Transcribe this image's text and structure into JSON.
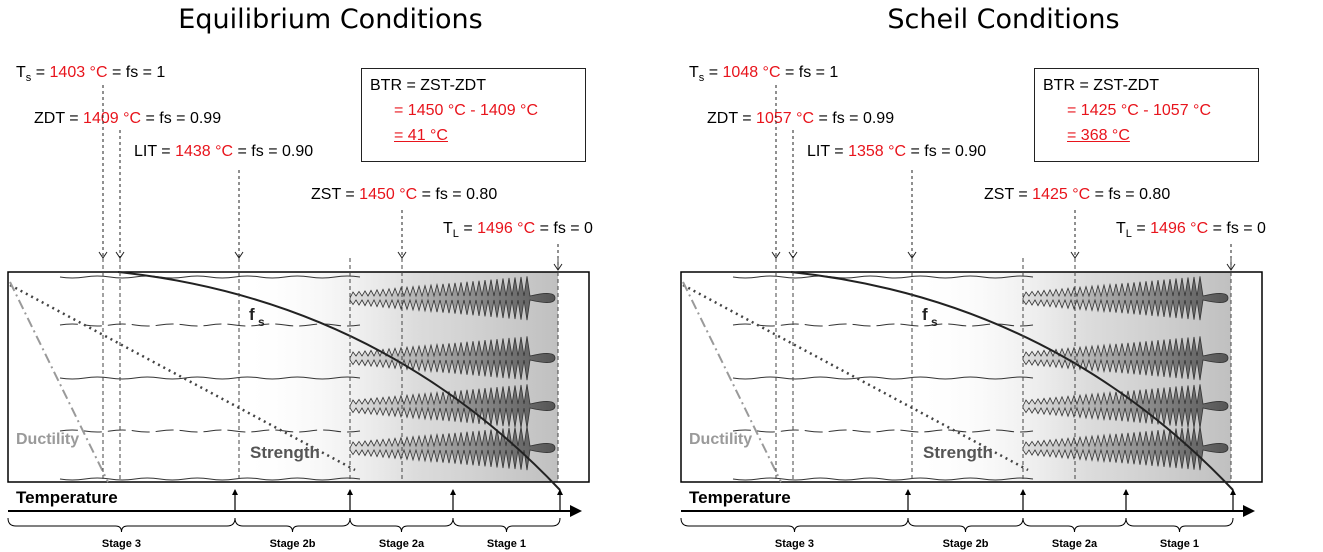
{
  "panels": [
    {
      "title": "Equilibrium Conditions",
      "ts": {
        "prefix": "T",
        "sub": "s",
        "eq": " = ",
        "value": "1403",
        "unit": " °C",
        "suffix": " = fs = 1"
      },
      "zdt": {
        "prefix": "ZDT = ",
        "value": "1409",
        "unit": " °C",
        "suffix": " = fs = 0.99"
      },
      "lit": {
        "prefix": "LIT = ",
        "value": "1438",
        "unit": " °C",
        "suffix": " = fs = 0.90"
      },
      "zst": {
        "prefix": "ZST = ",
        "value": "1450",
        "unit": " °C",
        "suffix": " = fs = 0.80"
      },
      "tl": {
        "prefix": "T",
        "sub": "L",
        "eq": " = ",
        "value": "1496",
        "unit": " °C",
        "suffix": " = fs = 0"
      },
      "btr": {
        "line1": "BTR = ZST-ZDT",
        "line2": "= 1450 °C - 1409 °C",
        "line3": "= 41 °C"
      }
    },
    {
      "title": "Scheil Conditions",
      "ts": {
        "prefix": "T",
        "sub": "s",
        "eq": " = ",
        "value": "1048",
        "unit": " °C",
        "suffix": " = fs = 1"
      },
      "zdt": {
        "prefix": "ZDT = ",
        "value": "1057",
        "unit": " °C",
        "suffix": " = fs = 0.99"
      },
      "lit": {
        "prefix": "LIT = ",
        "value": "1358",
        "unit": " °C",
        "suffix": " = fs = 0.90"
      },
      "zst": {
        "prefix": "ZST = ",
        "value": "1425",
        "unit": " °C",
        "suffix": " = fs = 0.80"
      },
      "tl": {
        "prefix": "T",
        "sub": "L",
        "eq": " = ",
        "value": "1496",
        "unit": " °C",
        "suffix": " = fs = 0"
      },
      "btr": {
        "line1": "BTR = ZST-ZDT",
        "line2": "= 1425 °C - 1057 °C",
        "line3": "= 368 °C"
      }
    }
  ],
  "diagram": {
    "fs_label": "f",
    "fs_sub": "s",
    "ductility_label": "Ductility",
    "strength_label": "Strength",
    "temperature_label": "Temperature",
    "stages": [
      "Stage 3",
      "Stage 2b",
      "Stage 2a",
      "Stage 1"
    ]
  },
  "colors": {
    "accent_red": "#e8141c",
    "ductility_gray": "#9a9a9a",
    "dendrite_dark": "#555555"
  }
}
